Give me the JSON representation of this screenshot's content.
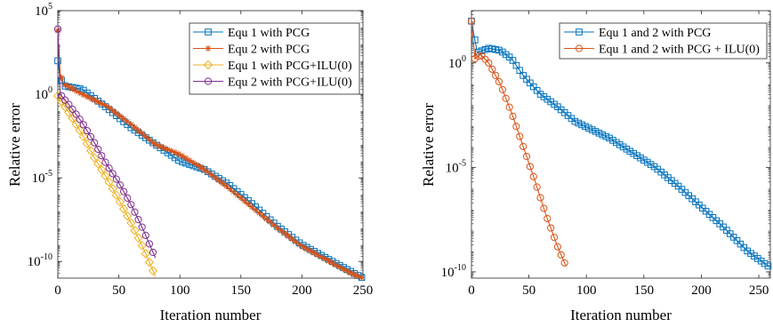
{
  "chart_data": [
    {
      "type": "line",
      "yscale": "log",
      "xlabel": "Iteration number",
      "ylabel": "Relative error",
      "xlim": [
        0,
        250
      ],
      "ylim_exp": [
        -11,
        5
      ],
      "xticks": [
        "0",
        "50",
        "100",
        "150",
        "200",
        "250"
      ],
      "yticks": [
        {
          "exp": 5,
          "base": "10",
          "sup": "5"
        },
        {
          "exp": 0,
          "base": "10",
          "sup": "0"
        },
        {
          "exp": -5,
          "base": "10",
          "sup": "-5"
        },
        {
          "exp": -10,
          "base": "10",
          "sup": "-10"
        }
      ],
      "legend_position": "top-right",
      "series": [
        {
          "name": "Equ 1 with PCG",
          "color": "#0072BD",
          "marker": "square",
          "x": [
            0,
            2,
            5,
            20,
            40,
            60,
            80,
            100,
            120,
            140,
            160,
            180,
            200,
            220,
            240,
            250
          ],
          "log10_y": [
            2.0,
            1.0,
            0.5,
            0.3,
            -0.8,
            -2.0,
            -3.0,
            -4.0,
            -4.5,
            -5.4,
            -6.6,
            -7.9,
            -9.0,
            -9.8,
            -10.6,
            -11.0
          ]
        },
        {
          "name": "Equ 2 with PCG",
          "color": "#D95319",
          "marker": "star",
          "x": [
            0,
            2,
            5,
            20,
            40,
            60,
            80,
            100,
            120,
            140,
            160,
            180,
            200,
            220,
            240,
            250
          ],
          "log10_y": [
            3.8,
            1.2,
            0.6,
            0.0,
            -0.7,
            -1.8,
            -3.0,
            -3.6,
            -4.5,
            -5.6,
            -6.8,
            -8.0,
            -9.1,
            -9.9,
            -10.7,
            -11.0
          ]
        },
        {
          "name": "Equ 1 with PCG+ILU(0)",
          "color": "#EDB120",
          "marker": "diamond",
          "x": [
            0,
            10,
            20,
            30,
            40,
            50,
            60,
            70,
            80
          ],
          "log10_y": [
            -0.1,
            -1.2,
            -2.4,
            -3.8,
            -5.0,
            -6.3,
            -7.7,
            -9.2,
            -10.9
          ]
        },
        {
          "name": "Equ 2 with PCG+ILU(0)",
          "color": "#7E2F8E",
          "marker": "circle",
          "x": [
            0,
            2,
            10,
            20,
            30,
            40,
            50,
            60,
            70,
            80
          ],
          "log10_y": [
            3.9,
            0.0,
            -0.7,
            -1.7,
            -2.9,
            -4.2,
            -5.3,
            -6.6,
            -8.1,
            -9.8
          ]
        }
      ]
    },
    {
      "type": "line",
      "yscale": "log",
      "xlabel": "Iteration number",
      "ylabel": "Relative error",
      "xlim": [
        0,
        260
      ],
      "ylim_exp": [
        -10.3,
        2.5
      ],
      "xticks": [
        "0",
        "50",
        "100",
        "150",
        "200",
        "250"
      ],
      "yticks": [
        {
          "exp": 0,
          "base": "10",
          "sup": "0"
        },
        {
          "exp": -5,
          "base": "10",
          "sup": "-5"
        },
        {
          "exp": -10,
          "base": "10",
          "sup": "-10"
        }
      ],
      "legend_position": "top-right",
      "series": [
        {
          "name": "Equ 1 and 2 with PCG",
          "color": "#0072BD",
          "marker": "square",
          "x": [
            0,
            5,
            15,
            25,
            35,
            45,
            60,
            75,
            90,
            105,
            120,
            140,
            160,
            180,
            200,
            220,
            240,
            260
          ],
          "log10_y": [
            2.0,
            0.5,
            0.7,
            0.6,
            0.2,
            -0.6,
            -1.5,
            -2.1,
            -2.8,
            -3.2,
            -3.6,
            -4.3,
            -5.0,
            -5.9,
            -6.9,
            -7.9,
            -9.0,
            -9.8
          ]
        },
        {
          "name": "Equ 1 and 2 with PCG + ILU(0)",
          "color": "#D95319",
          "marker": "circle",
          "x": [
            0,
            3,
            8,
            15,
            25,
            35,
            45,
            55,
            65,
            75,
            82
          ],
          "log10_y": [
            2.0,
            0.2,
            0.4,
            0.0,
            -1.0,
            -2.4,
            -4.0,
            -5.6,
            -7.3,
            -8.8,
            -9.7
          ]
        }
      ]
    }
  ]
}
